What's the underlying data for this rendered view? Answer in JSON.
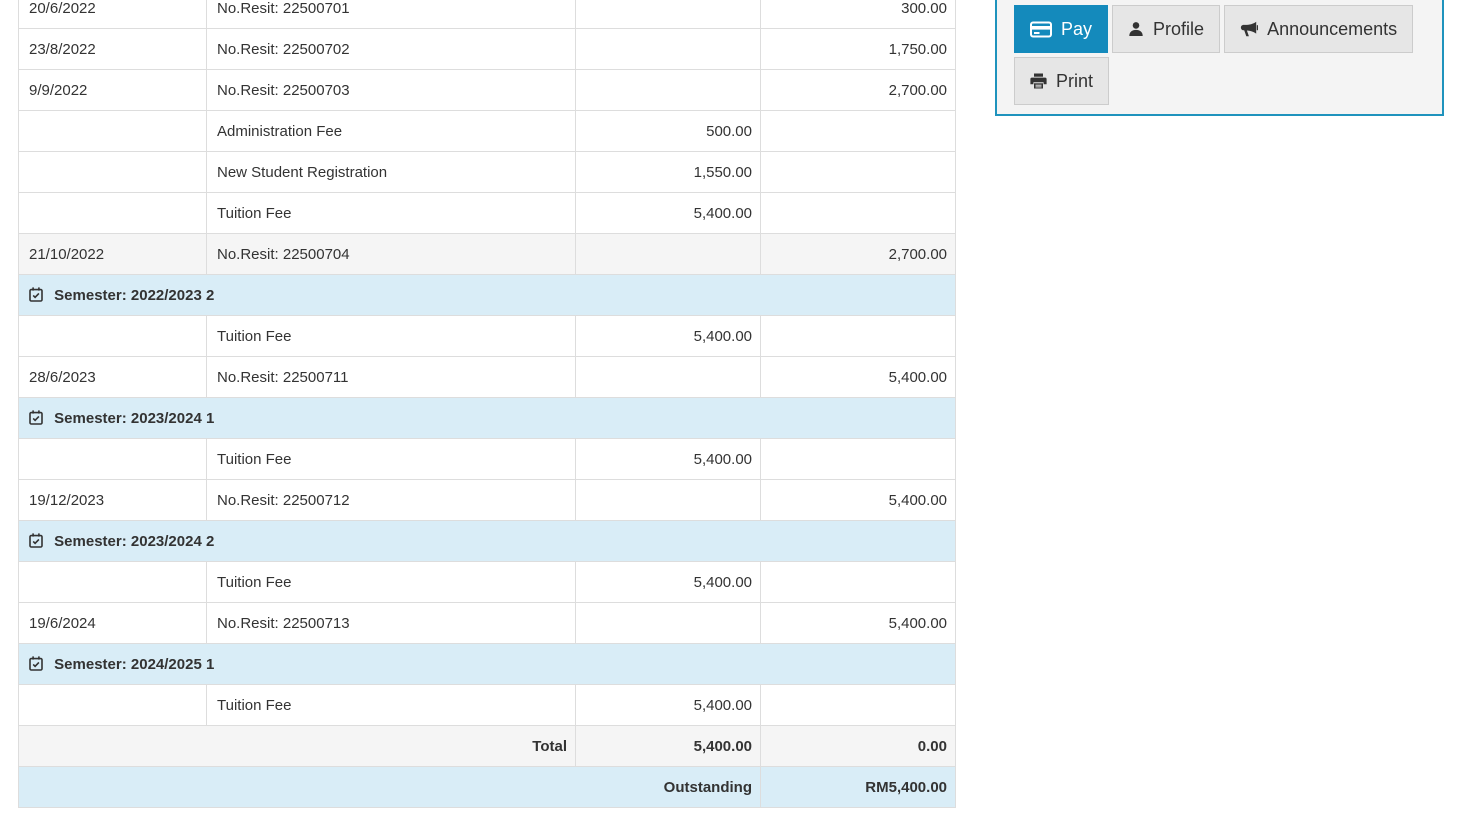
{
  "fees_table": {
    "columns": [
      "date",
      "description",
      "charge",
      "payment"
    ],
    "rows": [
      {
        "type": "data",
        "date": "20/6/2022",
        "description": "No.Resit: 22500701",
        "charge": "",
        "payment": "300.00",
        "shaded": false
      },
      {
        "type": "data",
        "date": "23/8/2022",
        "description": "No.Resit: 22500702",
        "charge": "",
        "payment": "1,750.00",
        "shaded": false
      },
      {
        "type": "data",
        "date": "9/9/2022",
        "description": "No.Resit: 22500703",
        "charge": "",
        "payment": "2,700.00",
        "shaded": false
      },
      {
        "type": "data",
        "date": "",
        "description": "Administration Fee",
        "charge": "500.00",
        "payment": "",
        "shaded": false
      },
      {
        "type": "data",
        "date": "",
        "description": "New Student Registration",
        "charge": "1,550.00",
        "payment": "",
        "shaded": false
      },
      {
        "type": "data",
        "date": "",
        "description": "Tuition Fee",
        "charge": "5,400.00",
        "payment": "",
        "shaded": false
      },
      {
        "type": "data",
        "date": "21/10/2022",
        "description": "No.Resit: 22500704",
        "charge": "",
        "payment": "2,700.00",
        "shaded": true
      },
      {
        "type": "semester",
        "label": "Semester: 2022/2023 2"
      },
      {
        "type": "data",
        "date": "",
        "description": "Tuition Fee",
        "charge": "5,400.00",
        "payment": "",
        "shaded": false
      },
      {
        "type": "data",
        "date": "28/6/2023",
        "description": "No.Resit: 22500711",
        "charge": "",
        "payment": "5,400.00",
        "shaded": false
      },
      {
        "type": "semester",
        "label": "Semester: 2023/2024 1"
      },
      {
        "type": "data",
        "date": "",
        "description": "Tuition Fee",
        "charge": "5,400.00",
        "payment": "",
        "shaded": false
      },
      {
        "type": "data",
        "date": "19/12/2023",
        "description": "No.Resit: 22500712",
        "charge": "",
        "payment": "5,400.00",
        "shaded": false
      },
      {
        "type": "semester",
        "label": "Semester: 2023/2024 2"
      },
      {
        "type": "data",
        "date": "",
        "description": "Tuition Fee",
        "charge": "5,400.00",
        "payment": "",
        "shaded": false
      },
      {
        "type": "data",
        "date": "19/6/2024",
        "description": "No.Resit: 22500713",
        "charge": "",
        "payment": "5,400.00",
        "shaded": false
      },
      {
        "type": "semester",
        "label": "Semester: 2024/2025 1"
      },
      {
        "type": "data",
        "date": "",
        "description": "Tuition Fee",
        "charge": "5,400.00",
        "payment": "",
        "shaded": false
      },
      {
        "type": "total",
        "label": "Total",
        "charge": "5,400.00",
        "payment": "0.00"
      },
      {
        "type": "outstanding",
        "label": "Outstanding",
        "payment": "RM5,400.00"
      }
    ],
    "semester_icon": "calendar-check-icon"
  },
  "actions_panel": {
    "buttons": [
      {
        "id": "pay",
        "label": "Pay",
        "icon": "credit-card-icon",
        "active": true
      },
      {
        "id": "profile",
        "label": "Profile",
        "icon": "user-icon",
        "active": false
      },
      {
        "id": "announcements",
        "label": "Announcements",
        "icon": "megaphone-icon",
        "active": false
      },
      {
        "id": "print",
        "label": "Print",
        "icon": "printer-icon",
        "active": false
      }
    ]
  },
  "colors": {
    "accent": "#148abc",
    "panel_border": "#1f93bd",
    "panel_bg": "#f4f4f4",
    "semester_bg": "#d9edf7",
    "muted_row_bg": "#f5f5f5",
    "table_border": "#dddddd",
    "text": "#333333",
    "button_bg": "#e6e6e6",
    "button_border": "#cccccc",
    "button_text": "#333333",
    "page_bg": "#ffffff"
  }
}
